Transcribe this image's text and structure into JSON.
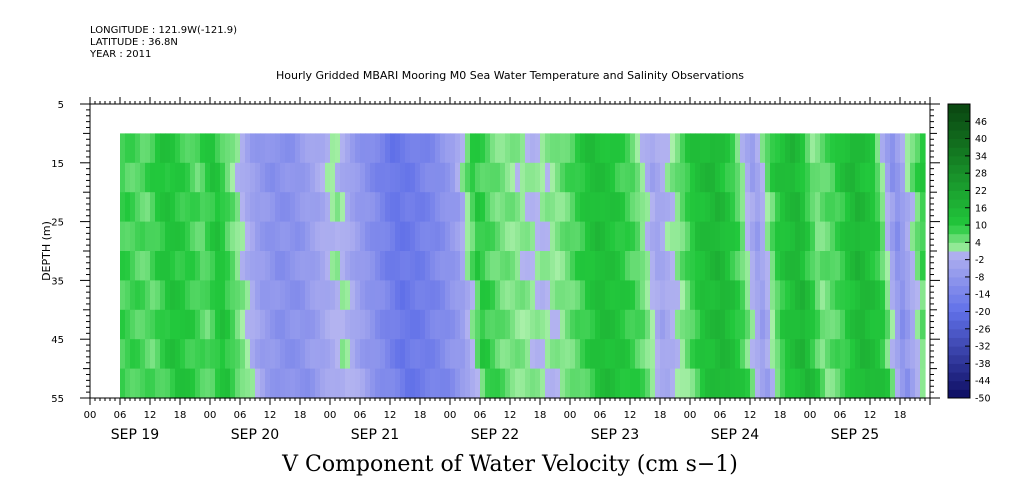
{
  "header": {
    "longitude": "LONGITUDE : 121.9W(-121.9)",
    "latitude": "LATITUDE : 36.8N",
    "year": "YEAR : 2011"
  },
  "chart_data": {
    "type": "heatmap",
    "title": "Hourly Gridded MBARI Mooring M0 Sea Water Temperature and Salinity Observations",
    "xlabel": "V Component of Water Velocity (cm s−1)",
    "ylabel": "DEPTH (m)",
    "y_ticks": [
      5,
      15,
      25,
      35,
      45,
      55
    ],
    "ylim": [
      5,
      55
    ],
    "y_reversed": true,
    "data_depth_range": [
      10,
      55
    ],
    "x_hour_ticks": [
      "00",
      "06",
      "12",
      "18",
      "00",
      "06",
      "12",
      "18",
      "00",
      "06",
      "12",
      "18",
      "00",
      "06",
      "12",
      "18",
      "00",
      "06",
      "12",
      "18",
      "00",
      "06",
      "12",
      "18",
      "00",
      "06",
      "12",
      "18"
    ],
    "x_day_labels": [
      "SEP 19",
      "SEP 20",
      "SEP 21",
      "SEP 22",
      "SEP 23",
      "SEP 24",
      "SEP 25"
    ],
    "x_range_hours": [
      0,
      168
    ],
    "data_start_hour": 6,
    "data_end_hour": 167,
    "colorbar": {
      "labels": [
        46,
        40,
        34,
        28,
        22,
        16,
        10,
        4,
        -2,
        -8,
        -14,
        -20,
        -26,
        -32,
        -38,
        -44,
        -50
      ],
      "range": [
        -50,
        52
      ],
      "step": 3,
      "colors": {
        "dark_positive": "#0b4a12",
        "mid_positive": "#22c83c",
        "light_positive": "#a8f0a8",
        "light_negative": "#b4b4f0",
        "mid_negative": "#6070e8",
        "dark_negative": "#0c0c60"
      }
    },
    "band_values_by_hour": {
      "hours": [
        6,
        10,
        14,
        18,
        21,
        24,
        28,
        32,
        36,
        40,
        44,
        48,
        52,
        56,
        60,
        64,
        68,
        72,
        76,
        80,
        84,
        88,
        92,
        96,
        100,
        104,
        108,
        112,
        116,
        120,
        124,
        128,
        132,
        136,
        140,
        144,
        148,
        152,
        156,
        160,
        164,
        167
      ],
      "values": [
        8,
        6,
        12,
        9,
        6,
        12,
        3,
        -6,
        -10,
        -9,
        -4,
        2,
        -6,
        -12,
        -18,
        -16,
        -12,
        -6,
        10,
        5,
        3,
        1,
        3,
        8,
        14,
        11,
        6,
        -4,
        3,
        12,
        16,
        8,
        -6,
        10,
        16,
        4,
        8,
        16,
        10,
        -10,
        5,
        14
      ]
    }
  }
}
